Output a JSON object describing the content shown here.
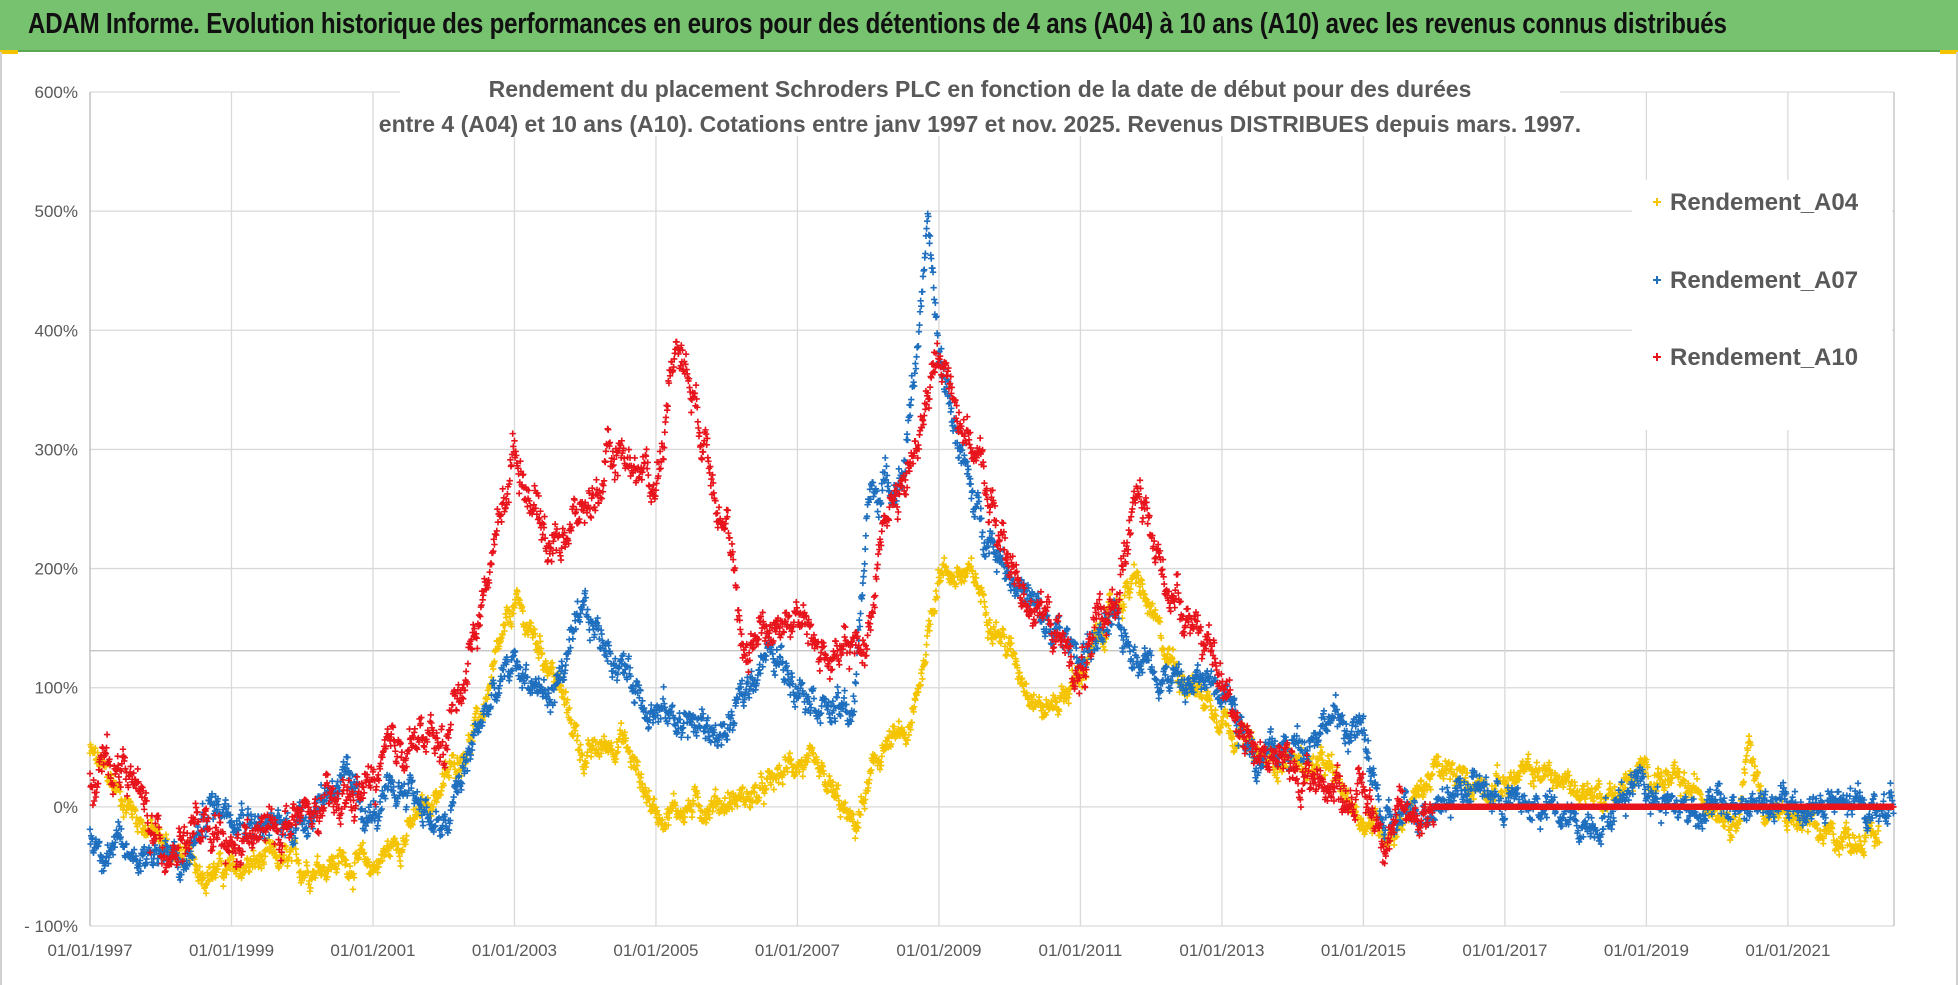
{
  "banner": {
    "title": "ADAM Informe. Evolution historique des performances en euros pour des détentions de 4 ans (A04) à 10 ans (A10) avec les revenus connus distribués"
  },
  "colors": {
    "banner_bg": "#77c26f",
    "accent": "#f5c400",
    "grid": "#d9d9d9",
    "A04": "#f5c400",
    "A07": "#1f6fbf",
    "A10": "#e8141c"
  },
  "chart_data": {
    "type": "scatter",
    "title_line1": "Rendement du placement Schroders PLC en fonction de la date de début pour des durées",
    "title_line2": "entre 4 (A04) et 10 ans (A10). Cotations entre janv 1997 et nov. 2025. Revenus DISTRIBUES depuis mars. 1997.",
    "xlabel": "",
    "ylabel": "",
    "xlim": [
      1997.0,
      2022.5
    ],
    "ylim": [
      -100,
      600
    ],
    "y_ticks": [
      600,
      500,
      400,
      300,
      200,
      100,
      0,
      -100
    ],
    "y_tick_labels": [
      "600%",
      "500%",
      "400%",
      "300%",
      "200%",
      "100%",
      "0%",
      "- 100%"
    ],
    "x_ticks": [
      1997,
      1999,
      2001,
      2003,
      2005,
      2007,
      2009,
      2011,
      2013,
      2015,
      2017,
      2019,
      2021
    ],
    "x_tick_labels": [
      "01/01/1997",
      "01/01/1999",
      "01/01/2001",
      "01/01/2003",
      "01/01/2005",
      "01/01/2007",
      "01/01/2009",
      "01/01/2011",
      "01/01/2013",
      "01/01/2015",
      "01/01/2017",
      "01/01/2019",
      "01/01/2021"
    ],
    "grid": true,
    "legend_position": "top-right",
    "marker": "+",
    "series": [
      {
        "name": "Rendement_A04",
        "color": "#f5c400",
        "anchors": [
          [
            1997.0,
            45
          ],
          [
            1997.5,
            5
          ],
          [
            1998.0,
            -30
          ],
          [
            1998.5,
            -50
          ],
          [
            1999.0,
            -55
          ],
          [
            1999.5,
            -45
          ],
          [
            2000.0,
            -50
          ],
          [
            2000.5,
            -45
          ],
          [
            2001.0,
            -50
          ],
          [
            2001.5,
            -20
          ],
          [
            2002.0,
            20
          ],
          [
            2002.5,
            70
          ],
          [
            2003.0,
            170
          ],
          [
            2003.5,
            120
          ],
          [
            2004.0,
            40
          ],
          [
            2004.5,
            60
          ],
          [
            2005.0,
            -5
          ],
          [
            2005.5,
            0
          ],
          [
            2006.0,
            5
          ],
          [
            2006.5,
            10
          ],
          [
            2007.0,
            40
          ],
          [
            2007.5,
            10
          ],
          [
            2007.8,
            -20
          ],
          [
            2008.2,
            50
          ],
          [
            2008.6,
            60
          ],
          [
            2009.0,
            200
          ],
          [
            2009.5,
            190
          ],
          [
            2010.0,
            130
          ],
          [
            2010.5,
            80
          ],
          [
            2011.0,
            110
          ],
          [
            2011.5,
            170
          ],
          [
            2011.8,
            190
          ],
          [
            2012.2,
            130
          ],
          [
            2012.6,
            100
          ],
          [
            2013.0,
            80
          ],
          [
            2013.5,
            40
          ],
          [
            2014.0,
            40
          ],
          [
            2014.5,
            30
          ],
          [
            2015.0,
            -10
          ],
          [
            2015.4,
            -20
          ],
          [
            2016.0,
            30
          ],
          [
            2016.5,
            20
          ],
          [
            2017.0,
            20
          ],
          [
            2017.5,
            30
          ],
          [
            2018.0,
            15
          ],
          [
            2018.5,
            10
          ],
          [
            2019.0,
            30
          ],
          [
            2019.5,
            15
          ],
          [
            2020.0,
            5
          ],
          [
            2020.3,
            -10
          ],
          [
            2020.45,
            50
          ],
          [
            2020.7,
            -5
          ],
          [
            2021.0,
            -10
          ],
          [
            2021.5,
            -25
          ],
          [
            2022.3,
            -25
          ]
        ],
        "noise": 12
      },
      {
        "name": "Rendement_A07",
        "color": "#1f6fbf",
        "anchors": [
          [
            1997.0,
            -25
          ],
          [
            1997.5,
            -40
          ],
          [
            1998.0,
            -35
          ],
          [
            1998.3,
            -55
          ],
          [
            1998.7,
            0
          ],
          [
            1999.0,
            5
          ],
          [
            1999.5,
            -20
          ],
          [
            2000.0,
            -10
          ],
          [
            2000.5,
            25
          ],
          [
            2001.0,
            -10
          ],
          [
            2001.5,
            20
          ],
          [
            2002.0,
            -25
          ],
          [
            2002.5,
            70
          ],
          [
            2003.0,
            120
          ],
          [
            2003.5,
            90
          ],
          [
            2004.0,
            160
          ],
          [
            2004.5,
            120
          ],
          [
            2005.0,
            80
          ],
          [
            2005.5,
            70
          ],
          [
            2006.0,
            60
          ],
          [
            2006.5,
            130
          ],
          [
            2007.0,
            110
          ],
          [
            2007.5,
            80
          ],
          [
            2007.8,
            80
          ],
          [
            2008.0,
            260
          ],
          [
            2008.5,
            280
          ],
          [
            2008.85,
            480
          ],
          [
            2009.0,
            380
          ],
          [
            2009.5,
            250
          ],
          [
            2010.0,
            200
          ],
          [
            2010.5,
            150
          ],
          [
            2011.0,
            130
          ],
          [
            2011.5,
            150
          ],
          [
            2012.0,
            120
          ],
          [
            2012.5,
            100
          ],
          [
            2013.0,
            110
          ],
          [
            2013.5,
            40
          ],
          [
            2014.0,
            50
          ],
          [
            2014.5,
            75
          ],
          [
            2015.0,
            60
          ],
          [
            2015.3,
            -20
          ],
          [
            2015.8,
            0
          ],
          [
            2016.5,
            20
          ],
          [
            2017.0,
            5
          ],
          [
            2017.5,
            0
          ],
          [
            2018.0,
            -15
          ],
          [
            2018.5,
            -5
          ],
          [
            2018.9,
            30
          ],
          [
            2019.2,
            5
          ],
          [
            2019.5,
            0
          ],
          [
            2022.5,
            0
          ]
        ],
        "noise": 15
      },
      {
        "name": "Rendement_A10",
        "color": "#e8141c",
        "anchors": [
          [
            1997.0,
            30
          ],
          [
            1997.5,
            35
          ],
          [
            1998.0,
            -35
          ],
          [
            1998.5,
            -20
          ],
          [
            1999.0,
            -40
          ],
          [
            1999.5,
            -20
          ],
          [
            2000.0,
            -10
          ],
          [
            2000.5,
            0
          ],
          [
            2001.0,
            20
          ],
          [
            2001.5,
            60
          ],
          [
            2002.0,
            50
          ],
          [
            2002.5,
            160
          ],
          [
            2003.0,
            300
          ],
          [
            2003.5,
            220
          ],
          [
            2004.0,
            250
          ],
          [
            2004.5,
            300
          ],
          [
            2005.0,
            270
          ],
          [
            2005.3,
            400
          ],
          [
            2005.6,
            330
          ],
          [
            2006.0,
            240
          ],
          [
            2006.2,
            130
          ],
          [
            2006.5,
            150
          ],
          [
            2007.0,
            160
          ],
          [
            2007.5,
            120
          ],
          [
            2008.0,
            140
          ],
          [
            2008.2,
            250
          ],
          [
            2008.5,
            260
          ],
          [
            2009.0,
            380
          ],
          [
            2009.5,
            300
          ],
          [
            2010.0,
            200
          ],
          [
            2010.5,
            160
          ],
          [
            2011.0,
            110
          ],
          [
            2011.5,
            180
          ],
          [
            2011.8,
            260
          ],
          [
            2012.2,
            190
          ],
          [
            2012.6,
            160
          ],
          [
            2013.0,
            100
          ],
          [
            2013.5,
            50
          ],
          [
            2014.0,
            30
          ],
          [
            2014.5,
            20
          ],
          [
            2015.0,
            10
          ],
          [
            2015.3,
            -20
          ],
          [
            2015.7,
            -5
          ],
          [
            2016.0,
            0
          ],
          [
            2022.5,
            0
          ]
        ],
        "noise": 18
      }
    ]
  }
}
